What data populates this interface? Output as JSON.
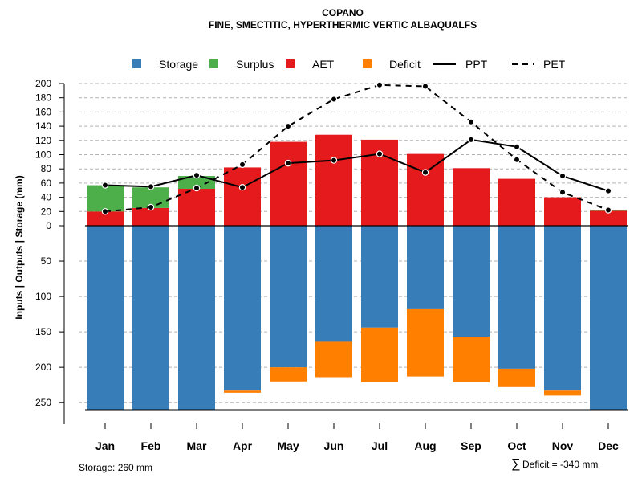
{
  "chart_data": {
    "type": "bar",
    "title": "COPANO",
    "subtitle": "FINE, SMECTITIC, HYPERTHERMIC VERTIC ALBAQUALFS",
    "ylabel": "Inputs | Outputs | Storage     (mm)",
    "categories": [
      "Jan",
      "Feb",
      "Mar",
      "Apr",
      "May",
      "Jun",
      "Jul",
      "Aug",
      "Sep",
      "Oct",
      "Nov",
      "Dec"
    ],
    "upper_axis": {
      "ylim": [
        0,
        200
      ],
      "ticks": [
        "0",
        "20",
        "40",
        "60",
        "80",
        "100",
        "120",
        "140",
        "160",
        "180",
        "200"
      ]
    },
    "lower_axis": {
      "ylim": [
        0,
        260
      ],
      "ticks": [
        "50",
        "100",
        "150",
        "200",
        "250"
      ]
    },
    "series": [
      {
        "name": "AET",
        "color": "#E41A1C",
        "values": [
          20,
          25,
          52,
          82,
          118,
          128,
          121,
          101,
          81,
          66,
          40,
          21
        ]
      },
      {
        "name": "Surplus",
        "color": "#4DAF4A",
        "values": [
          37,
          29,
          18,
          0,
          0,
          0,
          0,
          0,
          0,
          0,
          0,
          1
        ]
      },
      {
        "name": "Storage",
        "color": "#377EB8",
        "values": [
          260,
          260,
          260,
          233,
          200,
          164,
          144,
          118,
          157,
          202,
          233,
          260
        ]
      },
      {
        "name": "Deficit",
        "color": "#FF7F00",
        "values": [
          0,
          0,
          0,
          3,
          20,
          50,
          77,
          95,
          64,
          26,
          7,
          0
        ]
      },
      {
        "name": "PPT",
        "color": "#000000",
        "style": "solid",
        "values": [
          57,
          55,
          71,
          54,
          88,
          92,
          101,
          75,
          121,
          111,
          70,
          49
        ]
      },
      {
        "name": "PET",
        "color": "#000000",
        "style": "dashed",
        "values": [
          20,
          26,
          53,
          86,
          140,
          178,
          198,
          196,
          146,
          93,
          47,
          22
        ]
      }
    ],
    "legend": {
      "position": "top",
      "items": [
        {
          "label": "Storage",
          "kind": "square",
          "color": "#377EB8"
        },
        {
          "label": "Surplus",
          "kind": "square",
          "color": "#4DAF4A"
        },
        {
          "label": "AET",
          "kind": "square",
          "color": "#E41A1C"
        },
        {
          "label": "Deficit",
          "kind": "square",
          "color": "#FF7F00"
        },
        {
          "label": "PPT",
          "kind": "solid-line",
          "color": "#000000"
        },
        {
          "label": "PET",
          "kind": "dashed-line",
          "color": "#000000"
        }
      ]
    },
    "footer": {
      "storage_note": "Storage: 260 mm",
      "deficit_symbol": "∑",
      "deficit_note": "Deficit = -340 mm"
    },
    "grid": true
  }
}
